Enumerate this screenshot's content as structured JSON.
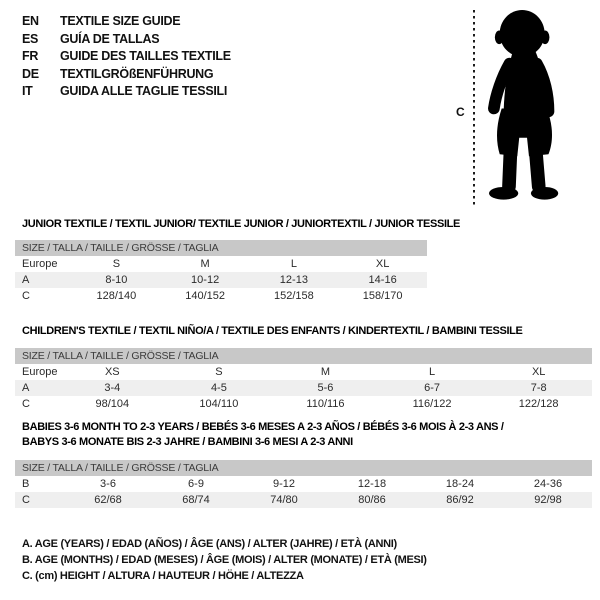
{
  "colors": {
    "header_bar": "#c8c8c8",
    "row_shaded": "#efefef"
  },
  "languages": [
    {
      "code": "EN",
      "label": "TEXTILE SIZE GUIDE"
    },
    {
      "code": "ES",
      "label": "GUÍA DE TALLAS"
    },
    {
      "code": "FR",
      "label": "GUIDE DES TAILLES TEXTILE"
    },
    {
      "code": "DE",
      "label": "TEXTILGRÖßENFÜHRUNG"
    },
    {
      "code": "IT",
      "label": "GUIDA ALLE TAGLIE TESSILI"
    }
  ],
  "figure": {
    "measure_label": "C",
    "icon": "toddler-silhouette"
  },
  "sections": [
    {
      "title_lines": [
        "JUNIOR TEXTILE / TEXTIL JUNIOR/ TEXTILE JUNIOR / JUNIORTEXTIL / JUNIOR TESSILE"
      ],
      "size_header": "SIZE / TALLA / TAILLE / GRÖSSE / TAGLIA",
      "rows": [
        {
          "label": "Europe",
          "values": [
            "S",
            "M",
            "L",
            "XL"
          ],
          "shaded": false
        },
        {
          "label": "A",
          "values": [
            "8-10",
            "10-12",
            "12-13",
            "14-16"
          ],
          "shaded": true
        },
        {
          "label": "C",
          "values": [
            "128/140",
            "140/152",
            "152/158",
            "158/170"
          ],
          "shaded": false
        }
      ]
    },
    {
      "title_lines": [
        "CHILDREN'S TEXTILE / TEXTIL NIÑO/A / TEXTILE DES ENFANTS / KINDERTEXTIL / BAMBINI TESSILE"
      ],
      "size_header": "SIZE / TALLA / TAILLE / GRÖSSE / TAGLIA",
      "rows": [
        {
          "label": "Europe",
          "values": [
            "XS",
            "S",
            "M",
            "L",
            "XL"
          ],
          "shaded": false
        },
        {
          "label": "A",
          "values": [
            "3-4",
            "4-5",
            "5-6",
            "6-7",
            "7-8"
          ],
          "shaded": true
        },
        {
          "label": "C",
          "values": [
            "98/104",
            "104/110",
            "110/116",
            "116/122",
            "122/128"
          ],
          "shaded": false
        }
      ]
    },
    {
      "title_lines": [
        "BABIES 3-6 MONTH TO 2-3 YEARS / BEBÉS 3-6 MESES A 2-3 AÑOS / BÉBÉS 3-6 MOIS À 2-3 ANS /",
        "BABYS 3-6 MONATE BIS 2-3 JAHRE / BAMBINI 3-6 MESI A 2-3 ANNI"
      ],
      "size_header": "SIZE / TALLA / TAILLE / GRÖSSE / TAGLIA",
      "rows": [
        {
          "label": "B",
          "values": [
            "3-6",
            "6-9",
            "9-12",
            "12-18",
            "18-24",
            "24-36"
          ],
          "shaded": false
        },
        {
          "label": "C",
          "values": [
            "62/68",
            "68/74",
            "74/80",
            "80/86",
            "86/92",
            "92/98"
          ],
          "shaded": true
        }
      ]
    }
  ],
  "footnotes": [
    "A. AGE (YEARS) / EDAD (AÑOS) / ÂGE (ANS) / ALTER (JAHRE) / ETÀ (ANNI)",
    "B. AGE (MONTHS) / EDAD (MESES) / ÂGE (MOIS) / ALTER (MONATE) / ETÀ (MESI)",
    "C. (cm) HEIGHT / ALTURA / HAUTEUR / HÖHE / ALTEZZA"
  ]
}
